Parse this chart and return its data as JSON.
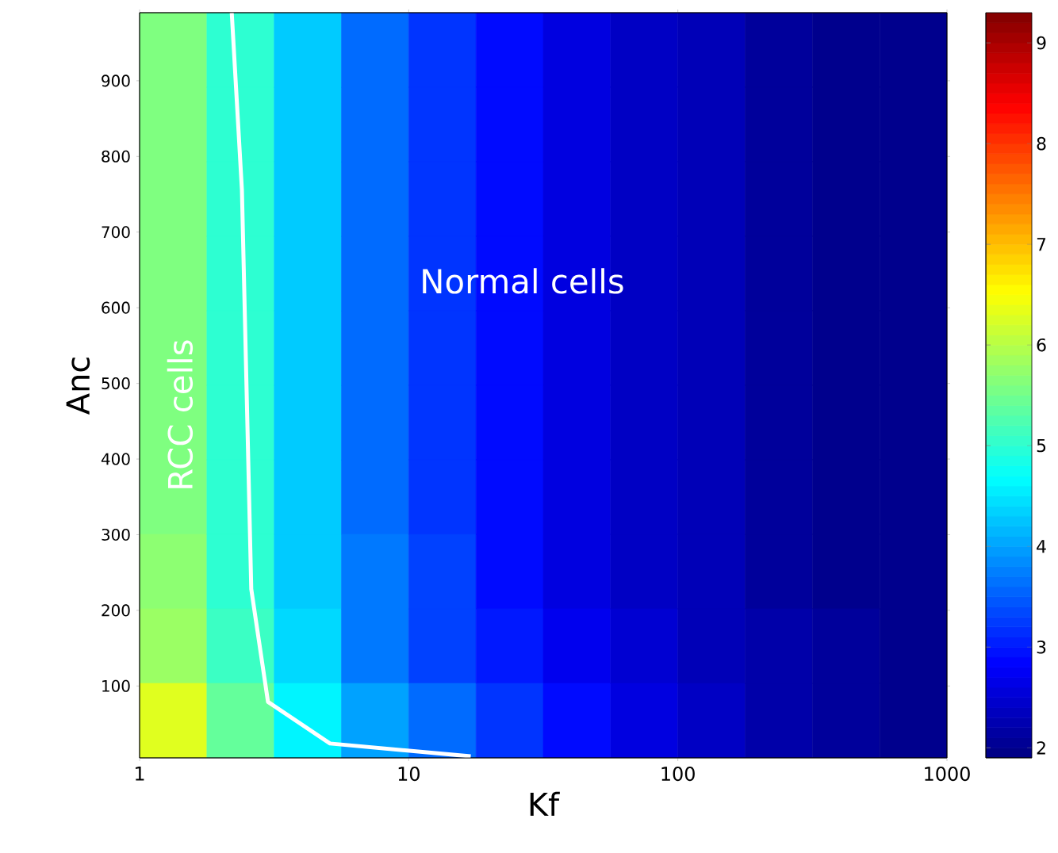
{
  "chart_data": [
    {
      "type": "heatmap",
      "categories": [
        null,
        null,
        null,
        null,
        null,
        null,
        null,
        null,
        null,
        null,
        null,
        null
      ],
      "y_categories": [
        null,
        null,
        null,
        null,
        null,
        null,
        null,
        null,
        null,
        null
      ],
      "cells": [
        [
          5.6,
          5.0,
          4.3,
          3.6,
          3.2,
          2.9,
          2.6,
          2.4,
          2.3,
          2.1,
          2.0,
          2.0
        ],
        [
          5.6,
          5.0,
          4.3,
          3.6,
          3.2,
          2.9,
          2.6,
          2.4,
          2.3,
          2.1,
          2.0,
          2.0
        ],
        [
          5.6,
          5.0,
          4.3,
          3.6,
          3.2,
          2.9,
          2.6,
          2.4,
          2.3,
          2.1,
          2.0,
          2.0
        ],
        [
          5.6,
          5.0,
          4.3,
          3.6,
          3.2,
          2.9,
          2.6,
          2.4,
          2.3,
          2.1,
          2.0,
          2.0
        ],
        [
          5.6,
          5.0,
          4.3,
          3.6,
          3.2,
          2.9,
          2.6,
          2.4,
          2.3,
          2.1,
          2.0,
          2.0
        ],
        [
          5.6,
          5.0,
          4.3,
          3.6,
          3.2,
          2.9,
          2.6,
          2.4,
          2.3,
          2.1,
          2.0,
          2.0
        ],
        [
          5.6,
          5.0,
          4.3,
          3.6,
          3.2,
          2.9,
          2.6,
          2.4,
          2.3,
          2.1,
          2.0,
          2.0
        ],
        [
          5.7,
          5.0,
          4.3,
          3.7,
          3.3,
          2.9,
          2.6,
          2.4,
          2.3,
          2.1,
          2.0,
          2.0
        ],
        [
          5.8,
          5.1,
          4.4,
          3.7,
          3.3,
          3.0,
          2.7,
          2.5,
          2.3,
          2.2,
          2.1,
          2.0
        ],
        [
          6.3,
          5.4,
          4.6,
          4.0,
          3.6,
          3.2,
          2.9,
          2.6,
          2.4,
          2.2,
          2.1,
          2.0
        ]
      ],
      "clim": [
        1.9,
        9.3
      ],
      "cticks": [
        2,
        3,
        4,
        5,
        6,
        7,
        8,
        9
      ]
    },
    {
      "type": "line",
      "xlabel": "Kf",
      "ylabel": "Anc",
      "log": "x",
      "xlim": [
        1,
        1000
      ],
      "xticks": [
        1,
        10,
        100,
        1000
      ],
      "ylim": [
        5,
        990
      ],
      "yticks": [
        100,
        200,
        300,
        400,
        500,
        600,
        700,
        800,
        900
      ],
      "series": [
        {
          "color": "#ffffff",
          "x": [
            2.2,
            2.4,
            2.6,
            3.0,
            5.1,
            17
          ],
          "values": [
            990,
            756,
            228,
            79,
            24,
            7
          ]
        }
      ],
      "annotations": [
        "RCC cells",
        "Normal cells"
      ]
    }
  ]
}
